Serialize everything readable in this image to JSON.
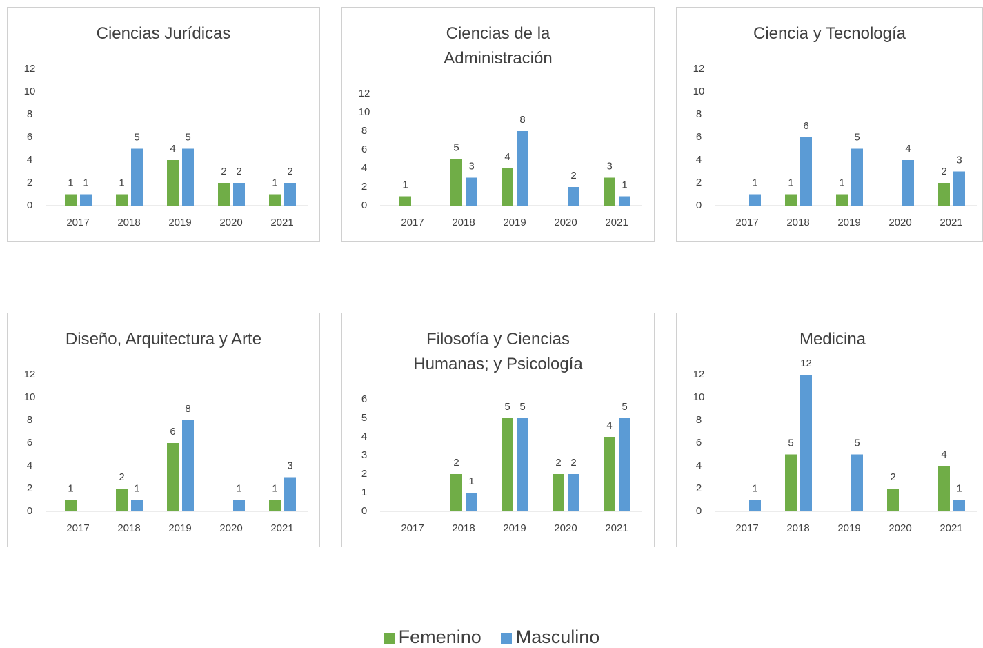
{
  "chart_data": [
    {
      "type": "bar",
      "title": "Ciencias Jurídicas",
      "categories": [
        "2017",
        "2018",
        "2019",
        "2020",
        "2021"
      ],
      "series": [
        {
          "color": "#70ad47",
          "values": [
            1,
            1,
            4,
            2,
            1
          ]
        },
        {
          "color": "#5b9bd5",
          "values": [
            1,
            5,
            5,
            2,
            2
          ]
        }
      ],
      "ylim": [
        0,
        12
      ],
      "yticks": [
        0,
        2,
        4,
        6,
        8,
        10,
        12
      ]
    },
    {
      "type": "bar",
      "title": "Ciencias de la Administración",
      "categories": [
        "2017",
        "2018",
        "2019",
        "2020",
        "2021"
      ],
      "series": [
        {
          "color": "#70ad47",
          "values": [
            1,
            5,
            4,
            null,
            3
          ]
        },
        {
          "color": "#5b9bd5",
          "values": [
            null,
            3,
            8,
            2,
            1
          ]
        }
      ],
      "ylim": [
        0,
        12
      ],
      "yticks": [
        0,
        2,
        4,
        6,
        8,
        10,
        12
      ]
    },
    {
      "type": "bar",
      "title": "Ciencia y Tecnología",
      "categories": [
        "2017",
        "2018",
        "2019",
        "2020",
        "2021"
      ],
      "series": [
        {
          "color": "#70ad47",
          "values": [
            null,
            1,
            1,
            null,
            2
          ]
        },
        {
          "color": "#5b9bd5",
          "values": [
            1,
            6,
            5,
            4,
            3
          ]
        }
      ],
      "ylim": [
        0,
        12
      ],
      "yticks": [
        0,
        2,
        4,
        6,
        8,
        10,
        12
      ]
    },
    {
      "type": "bar",
      "title": "Diseño, Arquitectura y Arte",
      "categories": [
        "2017",
        "2018",
        "2019",
        "2020",
        "2021"
      ],
      "series": [
        {
          "color": "#70ad47",
          "values": [
            1,
            2,
            6,
            null,
            1
          ]
        },
        {
          "color": "#5b9bd5",
          "values": [
            null,
            1,
            8,
            1,
            3
          ]
        }
      ],
      "ylim": [
        0,
        12
      ],
      "yticks": [
        0,
        2,
        4,
        6,
        8,
        10,
        12
      ]
    },
    {
      "type": "bar",
      "title": "Filosofía y Ciencias Humanas; y Psicología",
      "categories": [
        "2017",
        "2018",
        "2019",
        "2020",
        "2021"
      ],
      "series": [
        {
          "color": "#70ad47",
          "values": [
            null,
            2,
            5,
            2,
            4
          ]
        },
        {
          "color": "#5b9bd5",
          "values": [
            null,
            1,
            5,
            2,
            5
          ]
        }
      ],
      "ylim": [
        0,
        6
      ],
      "yticks": [
        0,
        1,
        2,
        3,
        4,
        5,
        6
      ]
    },
    {
      "type": "bar",
      "title": "Medicina",
      "categories": [
        "2017",
        "2018",
        "2019",
        "2020",
        "2021"
      ],
      "series": [
        {
          "color": "#70ad47",
          "values": [
            null,
            5,
            null,
            2,
            4
          ]
        },
        {
          "color": "#5b9bd5",
          "values": [
            1,
            12,
            5,
            null,
            1
          ]
        }
      ],
      "ylim": [
        0,
        12
      ],
      "yticks": [
        0,
        2,
        4,
        6,
        8,
        10,
        12
      ]
    }
  ],
  "legend": [
    {
      "name": "Femenino",
      "color": "#70ad47"
    },
    {
      "name": "Masculino",
      "color": "#5b9bd5"
    }
  ]
}
